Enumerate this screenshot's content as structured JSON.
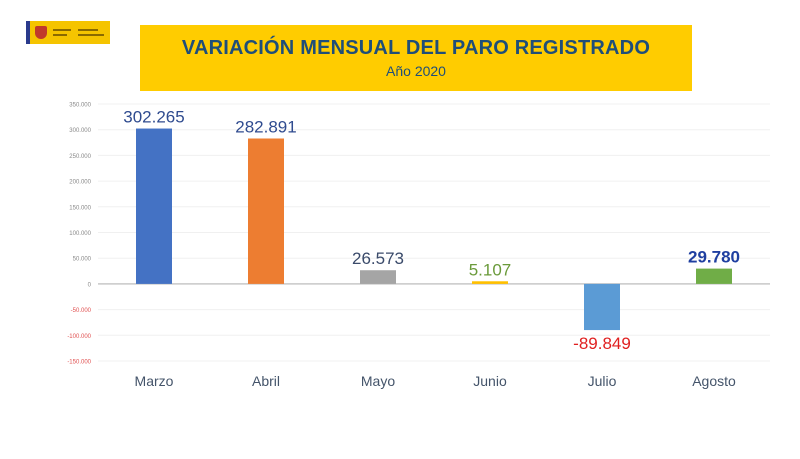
{
  "chart_data": {
    "type": "bar",
    "title": "VARIACIÓN MENSUAL DEL PARO REGISTRADO",
    "subtitle": "Año 2020",
    "categories": [
      "Marzo",
      "Abril",
      "Mayo",
      "Junio",
      "Julio",
      "Agosto"
    ],
    "values": [
      302265,
      282891,
      26573,
      5107,
      -89849,
      29780
    ],
    "data_labels": [
      "302.265",
      "282.891",
      "26.573",
      "5.107",
      "-89.849",
      "29.780"
    ],
    "bar_colors": [
      "#4472c4",
      "#ed7d31",
      "#a5a5a5",
      "#ffc000",
      "#5b9bd5",
      "#70ad47"
    ],
    "label_colors": [
      "#2f4b8f",
      "#2f4b8f",
      "#3a4a6a",
      "#6a9a3a",
      "#e02020",
      "#1f3fa0"
    ],
    "ylim": [
      -150000,
      350000
    ],
    "yticks": [
      350000,
      300000,
      250000,
      200000,
      150000,
      100000,
      50000,
      0,
      -50000,
      -100000,
      -150000
    ],
    "ytick_labels": [
      "350.000",
      "300.000",
      "250.000",
      "200.000",
      "150.000",
      "100.000",
      "50.000",
      "0",
      "-50.000",
      "-100.000",
      "-150.000"
    ],
    "grid": true,
    "xlabel": "",
    "ylabel": ""
  },
  "logo_text": "Gobierno de España - Ministerio de Trabajo y Economía Social"
}
